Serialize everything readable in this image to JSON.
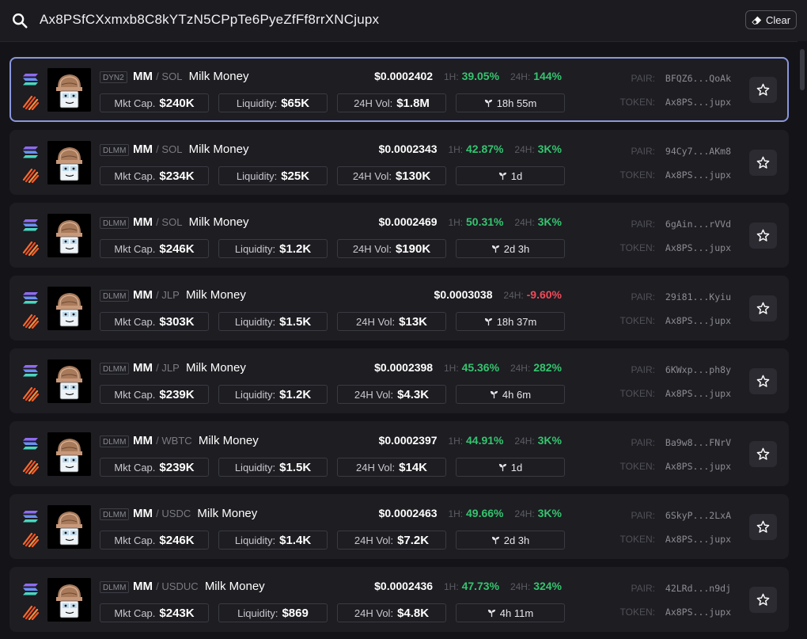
{
  "search": {
    "query": "Ax8PSfCXxmxb8C8kYTzN5CPpTe6PyeZfFf8rrXNCjupx",
    "clear_label": "Clear"
  },
  "labels": {
    "mkt_cap": "Mkt Cap.",
    "liquidity": "Liquidity:",
    "vol_24h": "24H Vol:",
    "h1": "1H:",
    "h24": "24H:",
    "pair": "PAIR:",
    "token": "TOKEN:"
  },
  "colors": {
    "accent_border": "#8a96dc",
    "positive": "#35c46f",
    "negative": "#ef4b5a"
  },
  "rows": [
    {
      "type": "DYN2",
      "symbol": "MM",
      "quote": "SOL",
      "name": "Milk Money",
      "price": "$0.0002402",
      "h1": "39.05%",
      "h24": "144%",
      "h24_neg": false,
      "mcap": "$240K",
      "liq": "$65K",
      "vol": "$1.8M",
      "age": "18h 55m",
      "pair": "BFQZ6...QoAk",
      "token": "Ax8PS...jupx",
      "selected": true
    },
    {
      "type": "DLMM",
      "symbol": "MM",
      "quote": "SOL",
      "name": "Milk Money",
      "price": "$0.0002343",
      "h1": "42.87%",
      "h24": "3K%",
      "h24_neg": false,
      "mcap": "$234K",
      "liq": "$25K",
      "vol": "$130K",
      "age": "1d",
      "pair": "94Cy7...AKm8",
      "token": "Ax8PS...jupx",
      "selected": false
    },
    {
      "type": "DLMM",
      "symbol": "MM",
      "quote": "SOL",
      "name": "Milk Money",
      "price": "$0.0002469",
      "h1": "50.31%",
      "h24": "3K%",
      "h24_neg": false,
      "mcap": "$246K",
      "liq": "$1.2K",
      "vol": "$190K",
      "age": "2d 3h",
      "pair": "6gAin...rVVd",
      "token": "Ax8PS...jupx",
      "selected": false
    },
    {
      "type": "DLMM",
      "symbol": "MM",
      "quote": "JLP",
      "name": "Milk Money",
      "price": "$0.0003038",
      "h1": null,
      "h24": "-9.60%",
      "h24_neg": true,
      "mcap": "$303K",
      "liq": "$1.5K",
      "vol": "$13K",
      "age": "18h 37m",
      "pair": "29i81...Kyiu",
      "token": "Ax8PS...jupx",
      "selected": false
    },
    {
      "type": "DLMM",
      "symbol": "MM",
      "quote": "JLP",
      "name": "Milk Money",
      "price": "$0.0002398",
      "h1": "45.36%",
      "h24": "282%",
      "h24_neg": false,
      "mcap": "$239K",
      "liq": "$1.2K",
      "vol": "$4.3K",
      "age": "4h 6m",
      "pair": "6KWxp...ph8y",
      "token": "Ax8PS...jupx",
      "selected": false
    },
    {
      "type": "DLMM",
      "symbol": "MM",
      "quote": "WBTC",
      "name": "Milk Money",
      "price": "$0.0002397",
      "h1": "44.91%",
      "h24": "3K%",
      "h24_neg": false,
      "mcap": "$239K",
      "liq": "$1.5K",
      "vol": "$14K",
      "age": "1d",
      "pair": "Ba9w8...FNrV",
      "token": "Ax8PS...jupx",
      "selected": false
    },
    {
      "type": "DLMM",
      "symbol": "MM",
      "quote": "USDC",
      "name": "Milk Money",
      "price": "$0.0002463",
      "h1": "49.66%",
      "h24": "3K%",
      "h24_neg": false,
      "mcap": "$246K",
      "liq": "$1.4K",
      "vol": "$7.2K",
      "age": "2d 3h",
      "pair": "6SkyP...2LxA",
      "token": "Ax8PS...jupx",
      "selected": false
    },
    {
      "type": "DLMM",
      "symbol": "MM",
      "quote": "USDUC",
      "name": "Milk Money",
      "price": "$0.0002436",
      "h1": "47.73%",
      "h24": "324%",
      "h24_neg": false,
      "mcap": "$243K",
      "liq": "$869",
      "vol": "$4.8K",
      "age": "4h 11m",
      "pair": "42LRd...n9dj",
      "token": "Ax8PS...jupx",
      "selected": false
    }
  ]
}
